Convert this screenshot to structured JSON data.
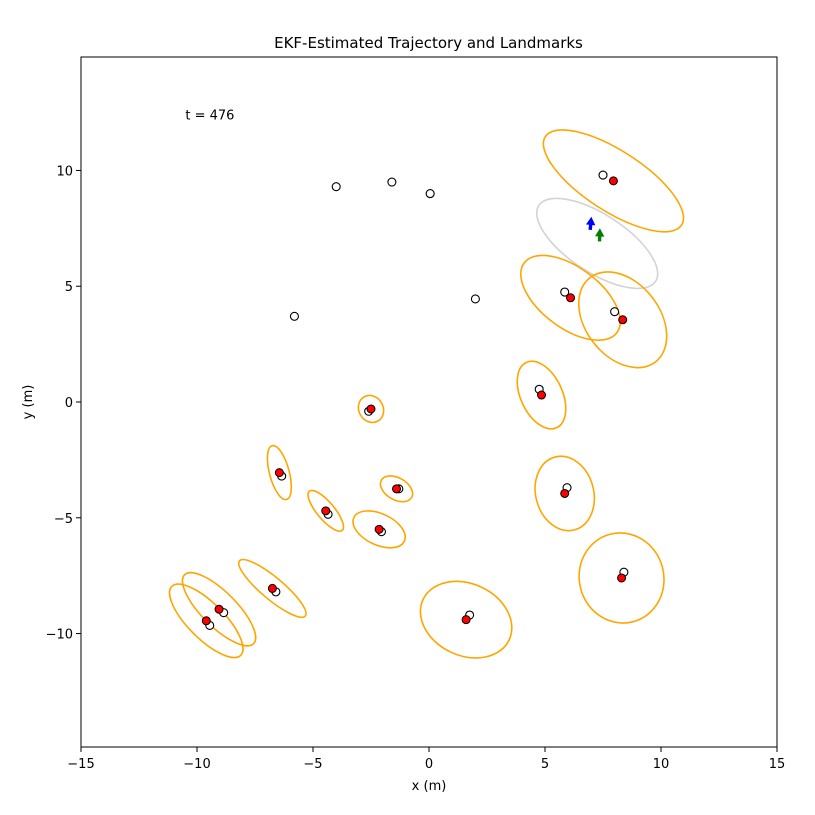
{
  "chart_data": {
    "type": "scatter",
    "title": "EKF-Estimated Trajectory and Landmarks",
    "xlabel": "x (m)",
    "ylabel": "y (m)",
    "xlim": [
      -15,
      15
    ],
    "ylim": [
      -14.9,
      14.9
    ],
    "xticks": [
      -15,
      -10,
      -5,
      0,
      5,
      10,
      15
    ],
    "yticks": [
      -10,
      -5,
      0,
      5,
      10
    ],
    "grid": false,
    "legend": "none",
    "annotation": "t = 476",
    "annotation_pos": [
      -10.5,
      12.2
    ],
    "true_landmarks": [
      [
        7.5,
        9.8
      ],
      [
        -4.0,
        9.3
      ],
      [
        -1.6,
        9.5
      ],
      [
        0.05,
        9.0
      ],
      [
        2.0,
        4.45
      ],
      [
        -5.8,
        3.7
      ],
      [
        5.85,
        4.75
      ],
      [
        8.0,
        3.9
      ],
      [
        4.75,
        0.55
      ],
      [
        -2.6,
        -0.4
      ],
      [
        -6.35,
        -3.2
      ],
      [
        5.95,
        -3.7
      ],
      [
        -1.3,
        -3.75
      ],
      [
        -4.35,
        -4.85
      ],
      [
        -2.05,
        -5.6
      ],
      [
        8.4,
        -7.35
      ],
      [
        -6.6,
        -8.2
      ],
      [
        1.75,
        -9.2
      ],
      [
        -8.85,
        -9.1
      ],
      [
        -9.45,
        -9.65
      ]
    ],
    "estimated_landmarks": [
      [
        7.95,
        9.55
      ],
      [
        6.1,
        4.5
      ],
      [
        8.35,
        3.55
      ],
      [
        4.85,
        0.3
      ],
      [
        -2.5,
        -0.3
      ],
      [
        -6.45,
        -3.05
      ],
      [
        5.85,
        -3.95
      ],
      [
        -1.4,
        -3.75
      ],
      [
        -4.45,
        -4.7
      ],
      [
        -2.15,
        -5.5
      ],
      [
        8.3,
        -7.6
      ],
      [
        -6.75,
        -8.05
      ],
      [
        1.6,
        -9.4
      ],
      [
        -9.05,
        -8.95
      ],
      [
        -9.6,
        -9.45
      ]
    ],
    "covariance_ellipses": [
      {
        "cx": 7.95,
        "cy": 9.55,
        "w": 7.0,
        "h": 2.6,
        "angle": -33
      },
      {
        "cx": 6.1,
        "cy": 4.5,
        "w": 5.0,
        "h": 2.6,
        "angle": -37
      },
      {
        "cx": 8.35,
        "cy": 3.55,
        "w": 4.6,
        "h": 3.2,
        "angle": -52
      },
      {
        "cx": 4.85,
        "cy": 0.3,
        "w": 3.1,
        "h": 1.8,
        "angle": -65
      },
      {
        "cx": -2.5,
        "cy": -0.3,
        "w": 1.2,
        "h": 1.05,
        "angle": -60
      },
      {
        "cx": -6.45,
        "cy": -3.05,
        "w": 2.4,
        "h": 0.85,
        "angle": -75
      },
      {
        "cx": 5.85,
        "cy": -3.95,
        "w": 3.25,
        "h": 2.5,
        "angle": -75
      },
      {
        "cx": -1.4,
        "cy": -3.75,
        "w": 1.5,
        "h": 0.95,
        "angle": -30
      },
      {
        "cx": -4.45,
        "cy": -4.7,
        "w": 2.2,
        "h": 0.75,
        "angle": -50
      },
      {
        "cx": -2.15,
        "cy": -5.5,
        "w": 2.4,
        "h": 1.35,
        "angle": -25
      },
      {
        "cx": 8.3,
        "cy": -7.6,
        "w": 3.9,
        "h": 3.65,
        "angle": -75
      },
      {
        "cx": -6.75,
        "cy": -8.05,
        "w": 3.7,
        "h": 0.95,
        "angle": -40
      },
      {
        "cx": 1.6,
        "cy": -9.4,
        "w": 4.1,
        "h": 3.1,
        "angle": -25
      },
      {
        "cx": -9.05,
        "cy": -8.95,
        "w": 4.2,
        "h": 1.5,
        "angle": -45
      },
      {
        "cx": -9.6,
        "cy": -9.45,
        "w": 4.2,
        "h": 1.55,
        "angle": -45
      }
    ],
    "pose_ellipse": {
      "cx": 7.25,
      "cy": 6.85,
      "w": 6.0,
      "h": 2.5,
      "angle": -33
    },
    "estimated_pose": {
      "x": 6.95,
      "y": 7.45,
      "heading_deg": 85
    },
    "true_pose": {
      "x": 7.35,
      "y": 6.95,
      "heading_deg": 88
    },
    "colors": {
      "landmark_ellipse": "#ffa500",
      "pose_ellipse": "#d3d3d3",
      "estimated_landmark": "#ff0000",
      "estimated_pose": "#0000ff",
      "true_pose": "#008000"
    }
  }
}
